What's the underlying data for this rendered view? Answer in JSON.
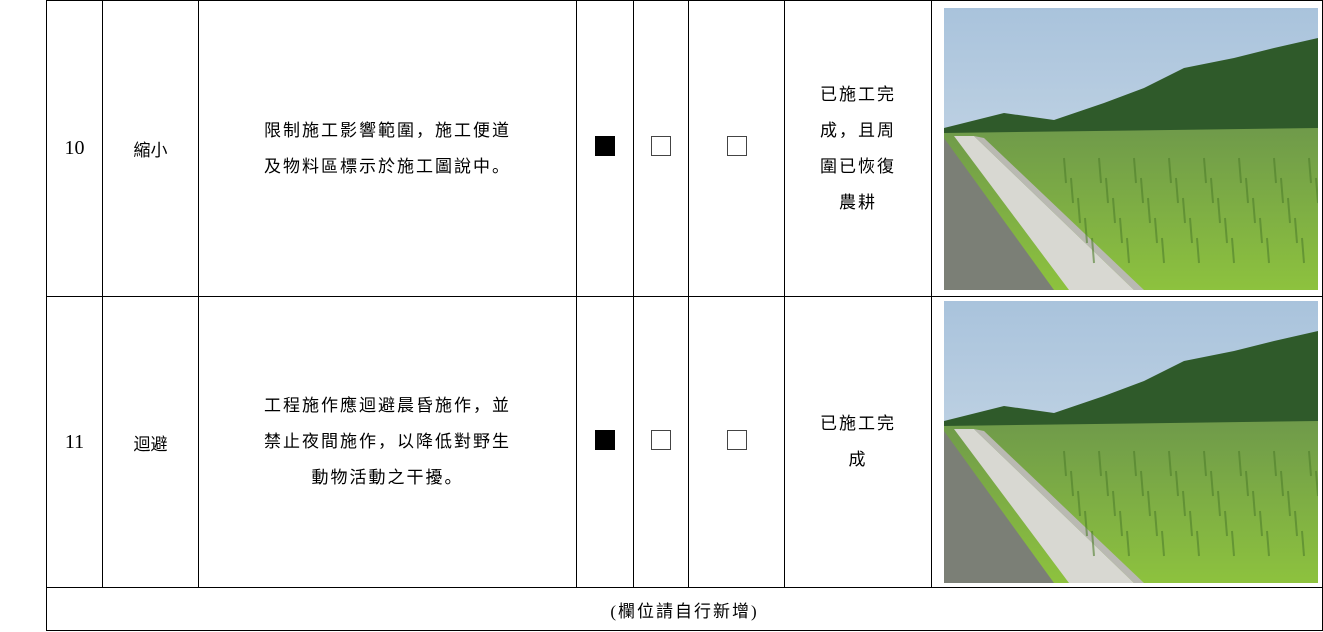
{
  "table": {
    "rows": [
      {
        "number": "10",
        "type": "縮小",
        "description": [
          "限制施工影響範圍，施工便道",
          "及物料區標示於施工圖說中。"
        ],
        "checked": [
          true,
          false,
          false
        ],
        "status": [
          "已施工完",
          "成，且周",
          "圍已恢復",
          "農耕"
        ]
      },
      {
        "number": "11",
        "type": "迴避",
        "description": [
          "工程施作應迴避晨昏施作，並",
          "禁止夜間施作，以降低對野生",
          "動物活動之干擾。"
        ],
        "checked": [
          true,
          false,
          false
        ],
        "status": [
          "已施工完",
          "成"
        ]
      }
    ],
    "footer": "(欄位請自行新增)"
  }
}
